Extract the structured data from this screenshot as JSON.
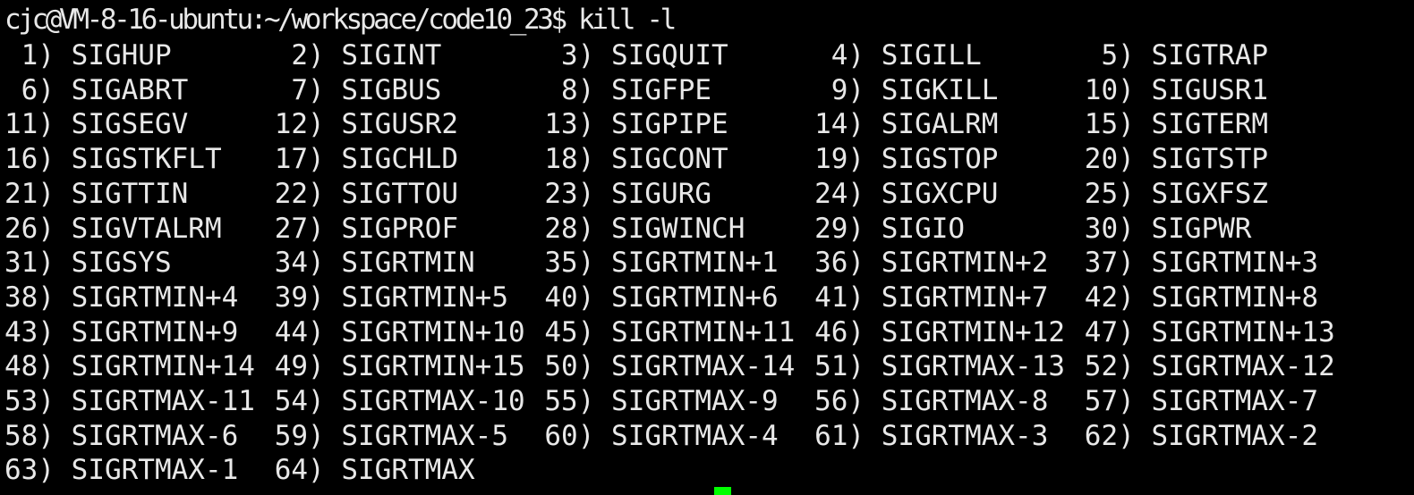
{
  "terminal": {
    "prompt": "cjc@VM-8-16-ubuntu:~/workspace/code10_23$ ",
    "command": "kill -l",
    "cursor_color": "#00ff00",
    "text_color": "#e8e8e8",
    "background": "#000000"
  },
  "signals": [
    {
      "num": "1",
      "name": "SIGHUP"
    },
    {
      "num": "2",
      "name": "SIGINT"
    },
    {
      "num": "3",
      "name": "SIGQUIT"
    },
    {
      "num": "4",
      "name": "SIGILL"
    },
    {
      "num": "5",
      "name": "SIGTRAP"
    },
    {
      "num": "6",
      "name": "SIGABRT"
    },
    {
      "num": "7",
      "name": "SIGBUS"
    },
    {
      "num": "8",
      "name": "SIGFPE"
    },
    {
      "num": "9",
      "name": "SIGKILL"
    },
    {
      "num": "10",
      "name": "SIGUSR1"
    },
    {
      "num": "11",
      "name": "SIGSEGV"
    },
    {
      "num": "12",
      "name": "SIGUSR2"
    },
    {
      "num": "13",
      "name": "SIGPIPE"
    },
    {
      "num": "14",
      "name": "SIGALRM"
    },
    {
      "num": "15",
      "name": "SIGTERM"
    },
    {
      "num": "16",
      "name": "SIGSTKFLT"
    },
    {
      "num": "17",
      "name": "SIGCHLD"
    },
    {
      "num": "18",
      "name": "SIGCONT"
    },
    {
      "num": "19",
      "name": "SIGSTOP"
    },
    {
      "num": "20",
      "name": "SIGTSTP"
    },
    {
      "num": "21",
      "name": "SIGTTIN"
    },
    {
      "num": "22",
      "name": "SIGTTOU"
    },
    {
      "num": "23",
      "name": "SIGURG"
    },
    {
      "num": "24",
      "name": "SIGXCPU"
    },
    {
      "num": "25",
      "name": "SIGXFSZ"
    },
    {
      "num": "26",
      "name": "SIGVTALRM"
    },
    {
      "num": "27",
      "name": "SIGPROF"
    },
    {
      "num": "28",
      "name": "SIGWINCH"
    },
    {
      "num": "29",
      "name": "SIGIO"
    },
    {
      "num": "30",
      "name": "SIGPWR"
    },
    {
      "num": "31",
      "name": "SIGSYS"
    },
    {
      "num": "34",
      "name": "SIGRTMIN"
    },
    {
      "num": "35",
      "name": "SIGRTMIN+1"
    },
    {
      "num": "36",
      "name": "SIGRTMIN+2"
    },
    {
      "num": "37",
      "name": "SIGRTMIN+3"
    },
    {
      "num": "38",
      "name": "SIGRTMIN+4"
    },
    {
      "num": "39",
      "name": "SIGRTMIN+5"
    },
    {
      "num": "40",
      "name": "SIGRTMIN+6"
    },
    {
      "num": "41",
      "name": "SIGRTMIN+7"
    },
    {
      "num": "42",
      "name": "SIGRTMIN+8"
    },
    {
      "num": "43",
      "name": "SIGRTMIN+9"
    },
    {
      "num": "44",
      "name": "SIGRTMIN+10"
    },
    {
      "num": "45",
      "name": "SIGRTMIN+11"
    },
    {
      "num": "46",
      "name": "SIGRTMIN+12"
    },
    {
      "num": "47",
      "name": "SIGRTMIN+13"
    },
    {
      "num": "48",
      "name": "SIGRTMIN+14"
    },
    {
      "num": "49",
      "name": "SIGRTMIN+15"
    },
    {
      "num": "50",
      "name": "SIGRTMAX-14"
    },
    {
      "num": "51",
      "name": "SIGRTMAX-13"
    },
    {
      "num": "52",
      "name": "SIGRTMAX-12"
    },
    {
      "num": "53",
      "name": "SIGRTMAX-11"
    },
    {
      "num": "54",
      "name": "SIGRTMAX-10"
    },
    {
      "num": "55",
      "name": "SIGRTMAX-9"
    },
    {
      "num": "56",
      "name": "SIGRTMAX-8"
    },
    {
      "num": "57",
      "name": "SIGRTMAX-7"
    },
    {
      "num": "58",
      "name": "SIGRTMAX-6"
    },
    {
      "num": "59",
      "name": "SIGRTMAX-5"
    },
    {
      "num": "60",
      "name": "SIGRTMAX-4"
    },
    {
      "num": "61",
      "name": "SIGRTMAX-3"
    },
    {
      "num": "62",
      "name": "SIGRTMAX-2"
    },
    {
      "num": "63",
      "name": "SIGRTMAX-1"
    },
    {
      "num": "64",
      "name": "SIGRTMAX"
    }
  ]
}
